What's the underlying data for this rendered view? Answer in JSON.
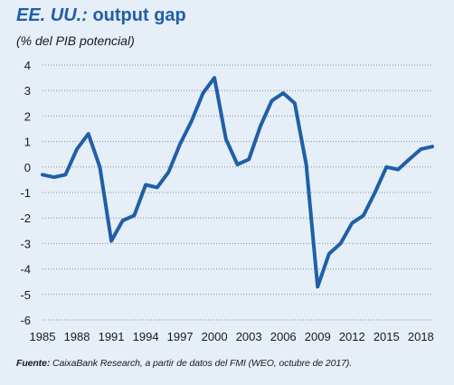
{
  "header": {
    "title_italic": "EE. UU.:",
    "title_rest": " output gap",
    "subtitle": "(% del PIB potencial)"
  },
  "footnote": {
    "label": "Fuente:",
    "text": " CaixaBank Research, a partir de datos del FMI (WEO, octubre de 2017)."
  },
  "colors": {
    "background": "#e6eef7",
    "line": "#1f5fa8",
    "title": "#1f5fa8",
    "grid": "#8c8c8c"
  },
  "chart_data": {
    "type": "line",
    "title": "EE. UU.: output gap",
    "subtitle": "(% del PIB potencial)",
    "xlabel": "",
    "ylabel": "",
    "xlim": [
      1985,
      2019
    ],
    "ylim": [
      -6,
      4
    ],
    "grid": "horizontal-dotted",
    "x_tick_labels": [
      "1985",
      "1988",
      "1991",
      "1994",
      "1997",
      "2000",
      "2003",
      "2006",
      "2009",
      "2012",
      "2015",
      "2018"
    ],
    "y_tick_labels": [
      "4",
      "3",
      "2",
      "1",
      "0",
      "-1",
      "-2",
      "-3",
      "-4",
      "-5",
      "-6"
    ],
    "y_tick_values": [
      4,
      3,
      2,
      1,
      0,
      -1,
      -2,
      -3,
      -4,
      -5,
      -6
    ],
    "x_tick_values": [
      1985,
      1988,
      1991,
      1994,
      1997,
      2000,
      2003,
      2006,
      2009,
      2012,
      2015,
      2018
    ],
    "series": [
      {
        "x": [
          1985,
          1986,
          1987,
          1988,
          1989,
          1990,
          1991,
          1992,
          1993,
          1994,
          1995,
          1996,
          1997,
          1998,
          1999,
          2000,
          2001,
          2002,
          2003,
          2004,
          2005,
          2006,
          2007,
          2008,
          2009,
          2010,
          2011,
          2012,
          2013,
          2014,
          2015,
          2016,
          2017,
          2018,
          2019
        ],
        "values": [
          -0.3,
          -0.4,
          -0.3,
          0.7,
          1.3,
          0.0,
          -2.9,
          -2.1,
          -1.9,
          -0.7,
          -0.8,
          -0.2,
          0.9,
          1.8,
          2.9,
          3.5,
          1.1,
          0.1,
          0.3,
          1.6,
          2.6,
          2.9,
          2.5,
          0.1,
          -4.7,
          -3.4,
          -3.0,
          -2.2,
          -1.9,
          -1.0,
          0.0,
          -0.1,
          0.3,
          0.7,
          0.8
        ]
      }
    ]
  }
}
